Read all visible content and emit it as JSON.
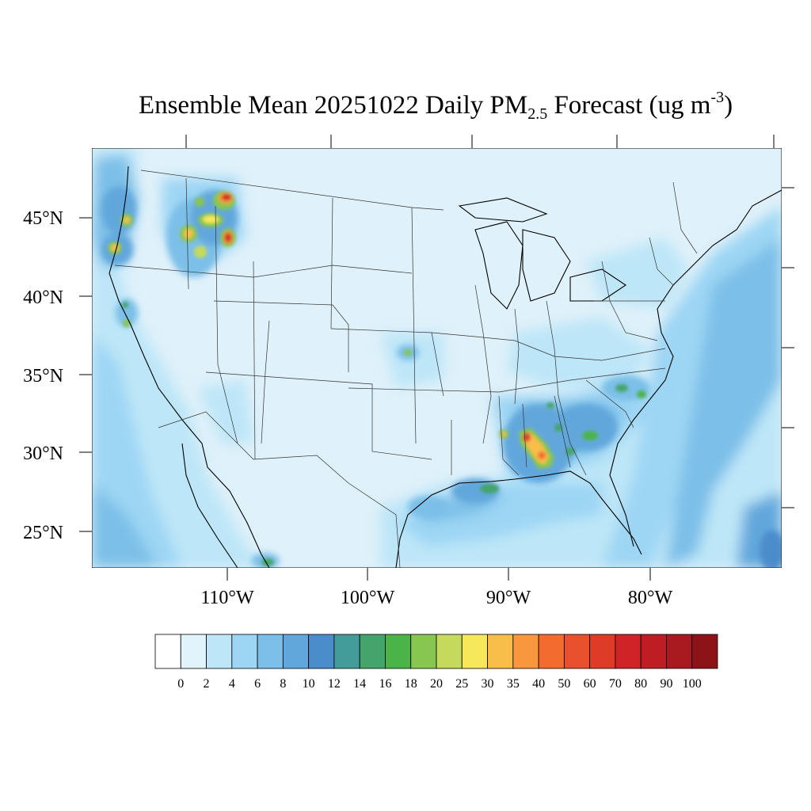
{
  "title": {
    "prefix": "Ensemble Mean 20251022 Daily PM",
    "subscript": "2.5",
    "middle": " Forecast (ug m",
    "superscript": "-3",
    "suffix": ")"
  },
  "map": {
    "latitude_labels": [
      "45°N",
      "40°N",
      "35°N",
      "30°N",
      "25°N"
    ],
    "longitude_labels": [
      "110°W",
      "100°W",
      "90°W",
      "80°W"
    ],
    "background_color": "#dff1fa"
  },
  "colorbar": {
    "tick_labels": [
      "0",
      "2",
      "4",
      "6",
      "8",
      "10",
      "12",
      "14",
      "16",
      "18",
      "20",
      "25",
      "30",
      "35",
      "40",
      "50",
      "60",
      "70",
      "80",
      "90",
      "100"
    ],
    "colors": [
      "#ffffff",
      "#e1f3fb",
      "#bde6f8",
      "#9dd6f4",
      "#7cbfe8",
      "#62a7dc",
      "#4b8ccb",
      "#449c9a",
      "#45a46b",
      "#4bb448",
      "#87c651",
      "#c5da5c",
      "#f7e75a",
      "#f9bd4a",
      "#f8973d",
      "#f36b2f",
      "#e9502d",
      "#df3b29",
      "#cf2328",
      "#be1d24",
      "#a81a1f",
      "#8c1419"
    ]
  }
}
